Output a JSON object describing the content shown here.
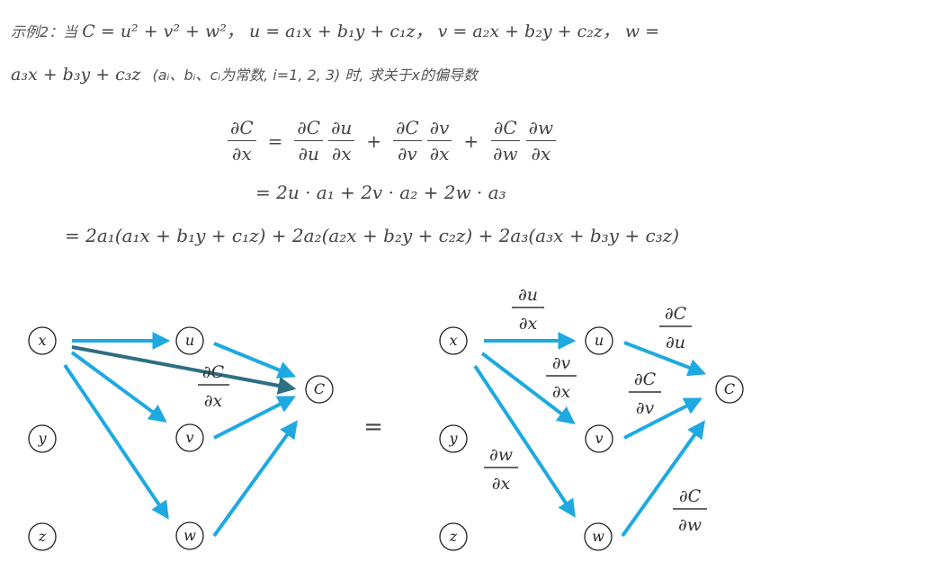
{
  "problem": {
    "label": "示例2：当",
    "line1_math": "C = u² + v² + w²， u = a₁x + b₁y + c₁z， v = a₂x + b₂y + c₂z， w =",
    "line2_math": "a₃x + b₃y + c₃z",
    "line2_note": "(aᵢ、bᵢ、cᵢ为常数, i=1, 2, 3) 时, 求关于x的偏导数"
  },
  "derivation": {
    "lhs_num": "∂C",
    "lhs_den": "∂x",
    "eq": "=",
    "plus": "+",
    "terms": [
      {
        "a_num": "∂C",
        "a_den": "∂u",
        "b_num": "∂u",
        "b_den": "∂x"
      },
      {
        "a_num": "∂C",
        "a_den": "∂v",
        "b_num": "∂v",
        "b_den": "∂x"
      },
      {
        "a_num": "∂C",
        "a_den": "∂w",
        "b_num": "∂w",
        "b_den": "∂x"
      }
    ],
    "line2": "= 2u · a₁ + 2v · a₂ + 2w · a₃",
    "line3": "= 2a₁(a₁x + b₁y + c₁z) + 2a₂(a₂x + b₂y + c₂z) + 2a₃(a₃x + b₃y + c₃z)"
  },
  "diagram": {
    "equals": "=",
    "left": {
      "nodes": [
        "x",
        "y",
        "z",
        "u",
        "v",
        "w",
        "C"
      ],
      "label": {
        "num": "∂C",
        "den": "∂x"
      }
    },
    "right": {
      "nodes": [
        "x",
        "y",
        "z",
        "u",
        "v",
        "w",
        "C"
      ],
      "labels": [
        {
          "num": "∂u",
          "den": "∂x"
        },
        {
          "num": "∂v",
          "den": "∂x"
        },
        {
          "num": "∂w",
          "den": "∂x"
        },
        {
          "num": "∂C",
          "den": "∂u"
        },
        {
          "num": "∂C",
          "den": "∂v"
        },
        {
          "num": "∂C",
          "den": "∂w"
        }
      ]
    },
    "colors": {
      "arrow": "#1ea9e1",
      "dark_arrow": "#2e6f82",
      "node_stroke": "#222222"
    }
  }
}
